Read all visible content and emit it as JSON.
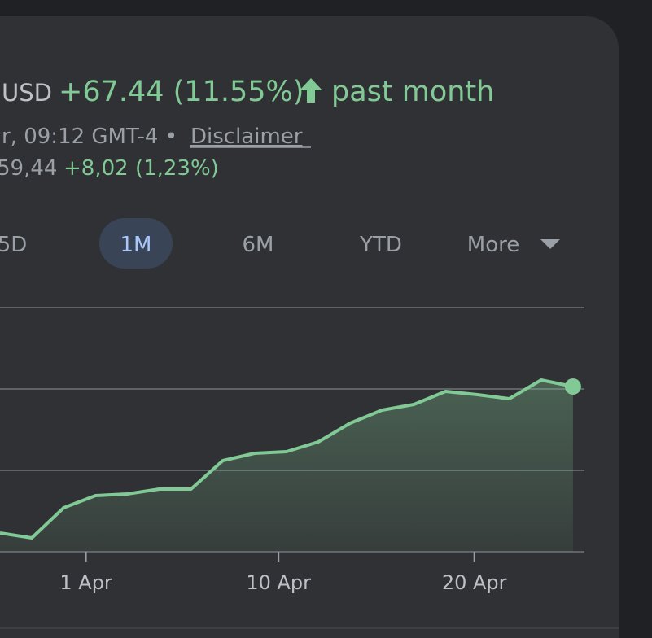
{
  "header": {
    "currency": "USD",
    "change": "+67.44 (11.55%)",
    "period": "past month",
    "timestamp": "r, 09:12 GMT-4 •",
    "disclaimer": "Disclaimer",
    "after_hours_price": "59,44",
    "after_hours_change": "+8,02 (1,23%)"
  },
  "tabs": [
    "5D",
    "1M",
    "6M",
    "YTD",
    "More"
  ],
  "selected_tab": 1,
  "chart_data": {
    "type": "line",
    "color": "#81c995",
    "area": true,
    "grid": true,
    "x": [
      0,
      1,
      2,
      3,
      4,
      5,
      6,
      7,
      8,
      9,
      10,
      11,
      12,
      13,
      14,
      15,
      16,
      17,
      18
    ],
    "values": [
      0.23,
      0.17,
      0.54,
      0.69,
      0.71,
      0.77,
      0.77,
      1.12,
      1.21,
      1.23,
      1.35,
      1.58,
      1.74,
      1.81,
      1.97,
      1.93,
      1.88,
      2.11,
      2.03
    ],
    "xlim": [
      0,
      18.36
    ],
    "ylim": [
      0,
      3
    ],
    "yticks": [
      0,
      1,
      2,
      3
    ],
    "xticks": [
      {
        "value": 2.7,
        "label": "1 Apr"
      },
      {
        "value": 8.75,
        "label": "10 Apr"
      },
      {
        "value": 14.9,
        "label": "20 Apr"
      }
    ]
  }
}
